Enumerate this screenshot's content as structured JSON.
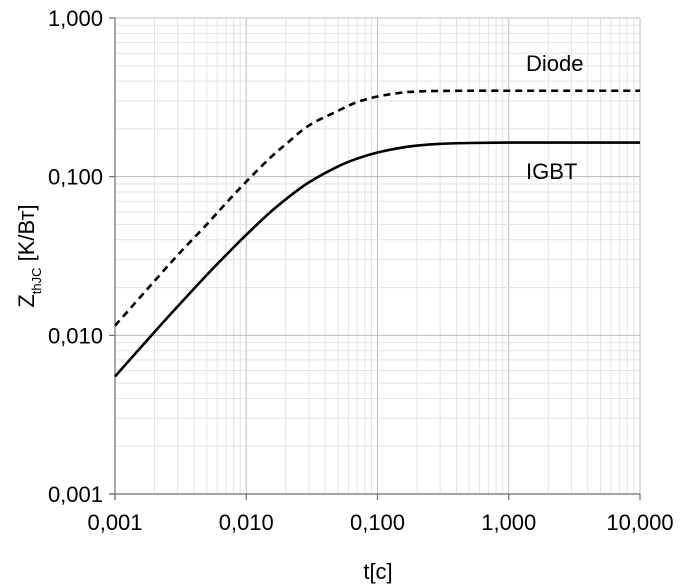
{
  "chart_data": {
    "type": "line",
    "title": "",
    "xscale": "log",
    "yscale": "log",
    "xlim": [
      0.001,
      10
    ],
    "ylim": [
      0.001,
      1
    ],
    "grid": true,
    "x_ticks": [
      {
        "value": 0.001,
        "label": "0,001"
      },
      {
        "value": 0.01,
        "label": "0,010"
      },
      {
        "value": 0.1,
        "label": "0,100"
      },
      {
        "value": 1,
        "label": "1,000"
      },
      {
        "value": 10,
        "label": "10,000"
      }
    ],
    "y_ticks": [
      {
        "value": 0.001,
        "label": "0,001"
      },
      {
        "value": 0.01,
        "label": "0,010"
      },
      {
        "value": 0.1,
        "label": "0,100"
      },
      {
        "value": 1,
        "label": "1,000"
      }
    ],
    "xlabel": "t[c]",
    "ylabel": {
      "main": "Z",
      "sub": "thJC",
      "unit": " [K/Вт]"
    },
    "series": [
      {
        "name": "Diode",
        "style": "dashed",
        "color": "#000000",
        "x": [
          0.001,
          0.002,
          0.003,
          0.005,
          0.007,
          0.01,
          0.015,
          0.02,
          0.03,
          0.05,
          0.07,
          0.1,
          0.15,
          0.2,
          0.3,
          0.5,
          1,
          2,
          5,
          10
        ],
        "y": [
          0.0115,
          0.022,
          0.032,
          0.05,
          0.068,
          0.093,
          0.13,
          0.16,
          0.21,
          0.26,
          0.295,
          0.32,
          0.338,
          0.344,
          0.347,
          0.348,
          0.348,
          0.348,
          0.348,
          0.348
        ]
      },
      {
        "name": "IGBT",
        "style": "solid",
        "color": "#000000",
        "x": [
          0.001,
          0.002,
          0.003,
          0.005,
          0.007,
          0.01,
          0.015,
          0.02,
          0.03,
          0.05,
          0.07,
          0.1,
          0.15,
          0.2,
          0.3,
          0.5,
          1,
          2,
          5,
          10
        ],
        "y": [
          0.0055,
          0.0105,
          0.0152,
          0.024,
          0.032,
          0.043,
          0.059,
          0.072,
          0.092,
          0.116,
          0.13,
          0.142,
          0.152,
          0.157,
          0.161,
          0.163,
          0.164,
          0.164,
          0.164,
          0.164
        ]
      }
    ]
  }
}
